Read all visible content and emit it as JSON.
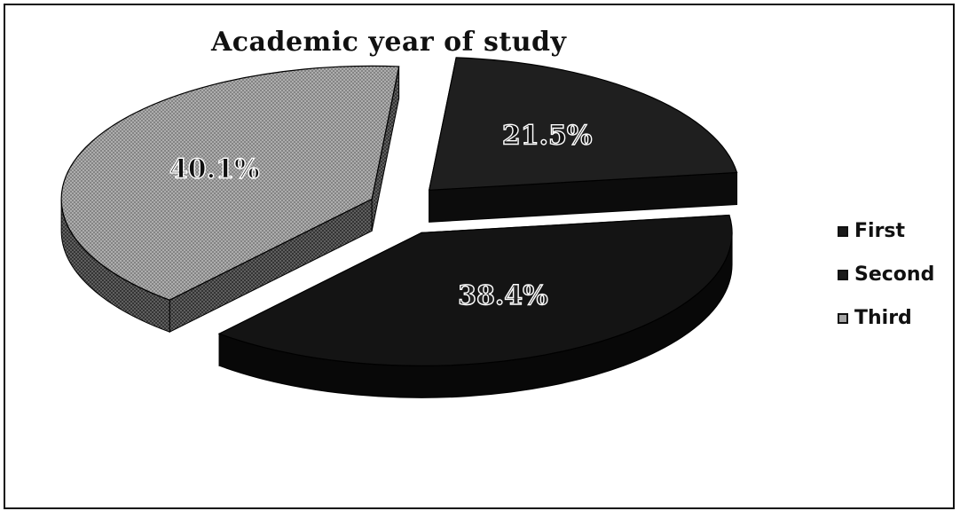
{
  "chart_data": {
    "type": "pie",
    "style": "3d-exploded",
    "title": "Academic year of study",
    "categories": [
      "First",
      "Second",
      "Third"
    ],
    "values": [
      21.5,
      38.4,
      40.1
    ],
    "data_labels": [
      "21.5%",
      "38.4%",
      "40.1%"
    ],
    "colors": [
      "#1e1e1e",
      "#141414",
      "#a6a6a6"
    ],
    "legend_position": "right"
  }
}
